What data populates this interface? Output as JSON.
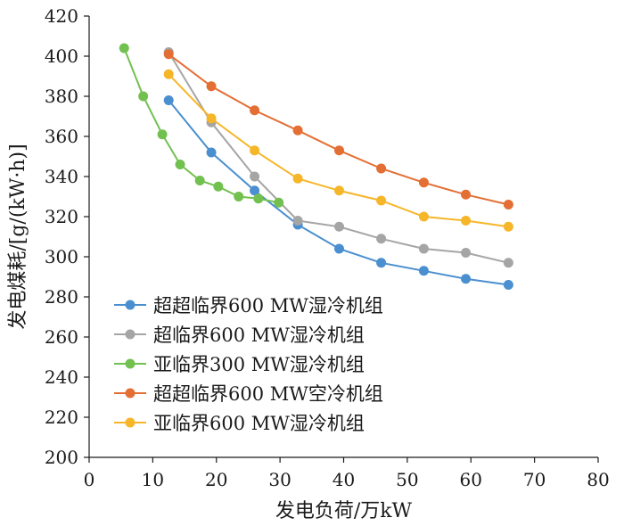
{
  "chart_data": {
    "type": "line",
    "title": "",
    "xlabel": "发电负荷/万kW",
    "ylabel": "发电煤耗/[g/(kW·h)]",
    "xlim": [
      0,
      80
    ],
    "ylim": [
      200,
      420
    ],
    "xticks": [
      0,
      10,
      20,
      30,
      40,
      50,
      60,
      70,
      80
    ],
    "yticks": [
      200,
      220,
      240,
      260,
      280,
      300,
      320,
      340,
      360,
      380,
      400,
      420
    ],
    "grid": false,
    "legend_position": "lower-left",
    "series": [
      {
        "name": "超超临界600 MW湿冷机组",
        "color": "#4a8fcf",
        "x": [
          12.5,
          19.2,
          26.0,
          32.8,
          39.3,
          45.9,
          52.6,
          59.2,
          65.9
        ],
        "y": [
          378,
          352,
          333,
          316,
          304,
          297,
          293,
          289,
          286
        ]
      },
      {
        "name": "超临界600 MW湿冷机组",
        "color": "#a5a5a5",
        "x": [
          12.5,
          19.2,
          26.0,
          32.8,
          39.3,
          45.9,
          52.6,
          59.2,
          65.9
        ],
        "y": [
          402,
          367,
          340,
          318,
          315,
          309,
          304,
          302,
          297
        ]
      },
      {
        "name": "亚临界300 MW湿冷机组",
        "color": "#72c04f",
        "x": [
          5.5,
          8.5,
          11.5,
          14.3,
          17.4,
          20.3,
          23.5,
          26.6,
          29.8
        ],
        "y": [
          404,
          380,
          361,
          346,
          338,
          335,
          330,
          329,
          327
        ]
      },
      {
        "name": "超超临界600 MW空冷机组",
        "color": "#e46f35",
        "x": [
          12.5,
          19.2,
          26.0,
          32.8,
          39.3,
          45.9,
          52.6,
          59.2,
          65.9
        ],
        "y": [
          401,
          385,
          373,
          363,
          353,
          344,
          337,
          331,
          326
        ]
      },
      {
        "name": "亚临界600 MW湿冷机组",
        "color": "#f6b62a",
        "x": [
          12.5,
          19.2,
          26.0,
          32.8,
          39.3,
          45.9,
          52.6,
          59.2,
          65.9
        ],
        "y": [
          391,
          369,
          353,
          339,
          333,
          328,
          320,
          318,
          315
        ]
      }
    ]
  }
}
